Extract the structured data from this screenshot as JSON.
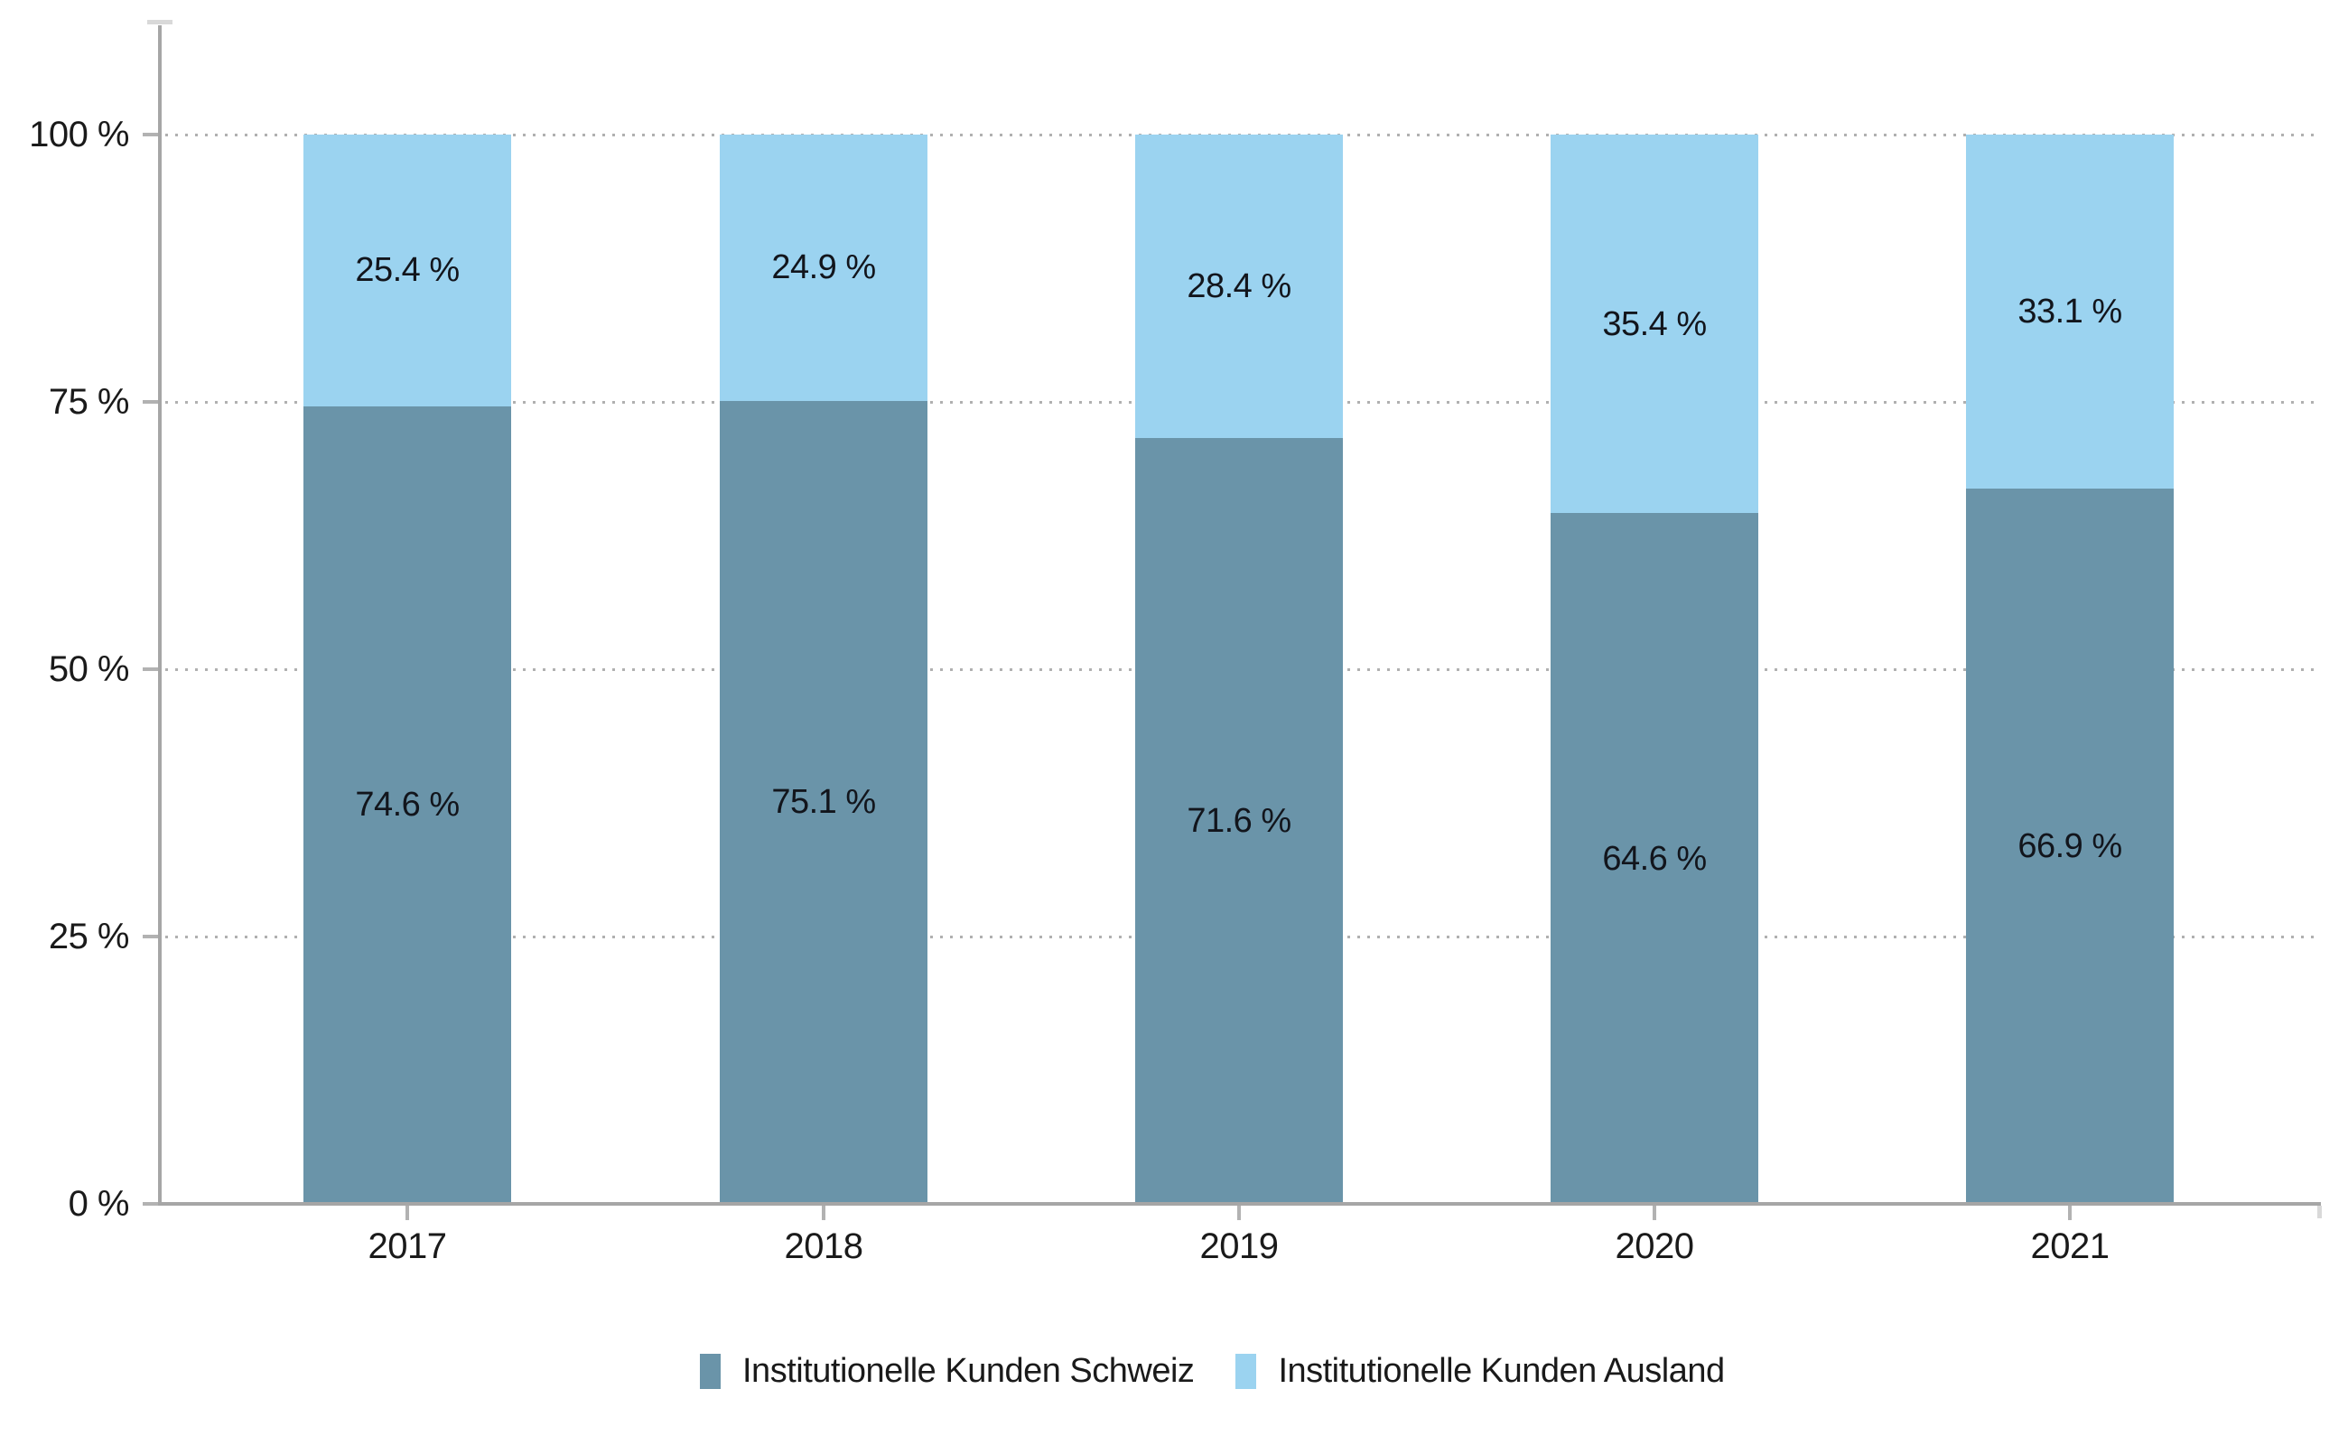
{
  "chart_data": {
    "type": "bar",
    "variant": "stacked-percentage-columns",
    "categories": [
      "2017",
      "2018",
      "2019",
      "2020",
      "2021"
    ],
    "series": [
      {
        "name": "Institutionelle Kunden Schweiz",
        "color": "#6a94a9",
        "values": [
          74.6,
          75.1,
          71.6,
          64.6,
          66.9
        ],
        "labels": [
          "74.6 %",
          "75.1 %",
          "71.6 %",
          "64.6 %",
          "66.9 %"
        ]
      },
      {
        "name": "Institutionelle Kunden Ausland",
        "color": "#9bd3f0",
        "values": [
          25.4,
          24.9,
          28.4,
          35.4,
          33.1
        ],
        "labels": [
          "25.4 %",
          "24.9 %",
          "28.4 %",
          "35.4 %",
          "33.1 %"
        ]
      }
    ],
    "xlabel": "",
    "ylabel": "",
    "ylim": [
      0,
      100
    ],
    "y_ticks": [
      {
        "value": 0,
        "label": "0 %"
      },
      {
        "value": 25,
        "label": "25 %"
      },
      {
        "value": 50,
        "label": "50 %"
      },
      {
        "value": 75,
        "label": "75 %"
      },
      {
        "value": 100,
        "label": "100 %"
      }
    ],
    "grid": "horizontal-dotted",
    "legend_position": "bottom"
  },
  "colors": {
    "background": "#ffffff",
    "series_schweiz": "#6a94a9",
    "series_ausland": "#9bd3f0",
    "axis_line": "#a6a6a6",
    "tick_mark": "#b2b2b2",
    "grid_dot": "#b0b0b0",
    "axis_end_cap": "#d9d9d9",
    "value_label_text": "#12151c",
    "axis_label_text": "#1a1a1a"
  }
}
